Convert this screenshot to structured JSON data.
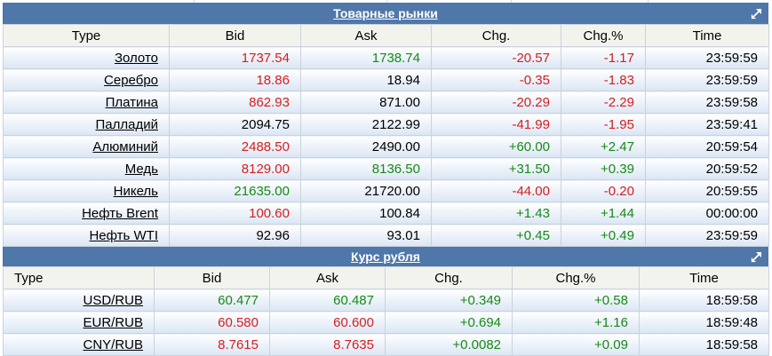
{
  "colors": {
    "header_bg": "#4f77a9",
    "up": "#178a17",
    "down": "#d42020"
  },
  "commodities": {
    "title": "Товарные рынки",
    "expand_icon": "expand-arrow-icon",
    "columns": [
      "Type",
      "Bid",
      "Ask",
      "Chg.",
      "Chg.%",
      "Time"
    ],
    "rows": [
      {
        "type": "Золото",
        "bid": "1737.54",
        "bid_color": "red",
        "ask": "1738.74",
        "ask_color": "green",
        "chg": "-20.57",
        "chg_color": "red",
        "chgp": "-1.17",
        "chgp_color": "red",
        "time": "23:59:59"
      },
      {
        "type": "Серебро",
        "bid": "18.86",
        "bid_color": "red",
        "ask": "18.94",
        "ask_color": "black",
        "chg": "-0.35",
        "chg_color": "red",
        "chgp": "-1.83",
        "chgp_color": "red",
        "time": "23:59:59"
      },
      {
        "type": "Платина",
        "bid": "862.93",
        "bid_color": "red",
        "ask": "871.00",
        "ask_color": "black",
        "chg": "-20.29",
        "chg_color": "red",
        "chgp": "-2.29",
        "chgp_color": "red",
        "time": "23:59:58"
      },
      {
        "type": "Палладий",
        "bid": "2094.75",
        "bid_color": "black",
        "ask": "2122.99",
        "ask_color": "black",
        "chg": "-41.99",
        "chg_color": "red",
        "chgp": "-1.95",
        "chgp_color": "red",
        "time": "23:59:41"
      },
      {
        "type": "Алюминий",
        "bid": "2488.50",
        "bid_color": "red",
        "ask": "2490.00",
        "ask_color": "black",
        "chg": "+60.00",
        "chg_color": "green",
        "chgp": "+2.47",
        "chgp_color": "green",
        "time": "20:59:54"
      },
      {
        "type": "Медь",
        "bid": "8129.00",
        "bid_color": "red",
        "ask": "8136.50",
        "ask_color": "green",
        "chg": "+31.50",
        "chg_color": "green",
        "chgp": "+0.39",
        "chgp_color": "green",
        "time": "20:59:52"
      },
      {
        "type": "Никель",
        "bid": "21635.00",
        "bid_color": "green",
        "ask": "21720.00",
        "ask_color": "black",
        "chg": "-44.00",
        "chg_color": "red",
        "chgp": "-0.20",
        "chgp_color": "red",
        "time": "20:59:55"
      },
      {
        "type": "Нефть Brent",
        "bid": "100.60",
        "bid_color": "red",
        "ask": "100.84",
        "ask_color": "black",
        "chg": "+1.43",
        "chg_color": "green",
        "chgp": "+1.44",
        "chgp_color": "green",
        "time": "00:00:00"
      },
      {
        "type": "Нефть WTI",
        "bid": "92.96",
        "bid_color": "black",
        "ask": "93.01",
        "ask_color": "black",
        "chg": "+0.45",
        "chg_color": "green",
        "chgp": "+0.49",
        "chgp_color": "green",
        "time": "23:59:59"
      }
    ]
  },
  "ruble": {
    "title": "Курс рубля",
    "expand_icon": "expand-arrow-icon",
    "columns": [
      "Type",
      "Bid",
      "Ask",
      "Chg.",
      "Chg.%",
      "Time"
    ],
    "rows": [
      {
        "type": "USD/RUB",
        "bid": "60.477",
        "bid_color": "green",
        "ask": "60.487",
        "ask_color": "green",
        "chg": "+0.349",
        "chg_color": "green",
        "chgp": "+0.58",
        "chgp_color": "green",
        "time": "18:59:58"
      },
      {
        "type": "EUR/RUB",
        "bid": "60.580",
        "bid_color": "red",
        "ask": "60.600",
        "ask_color": "red",
        "chg": "+0.694",
        "chg_color": "green",
        "chgp": "+1.16",
        "chgp_color": "green",
        "time": "18:59:48"
      },
      {
        "type": "CNY/RUB",
        "bid": "8.7615",
        "bid_color": "red",
        "ask": "8.7635",
        "ask_color": "red",
        "chg": "+0.0082",
        "chg_color": "green",
        "chgp": "+0.09",
        "chgp_color": "green",
        "time": "18:59:58"
      }
    ]
  }
}
